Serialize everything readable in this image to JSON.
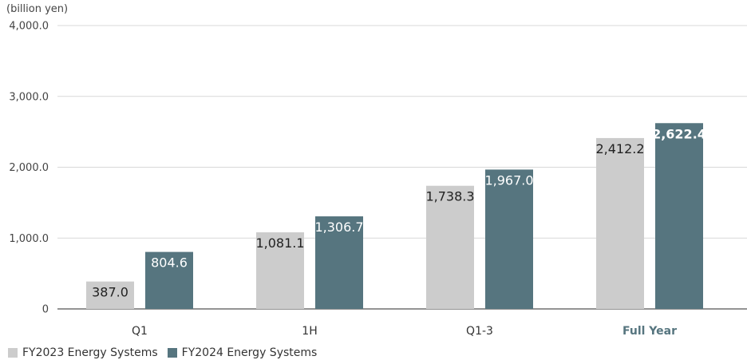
{
  "chart_data": {
    "type": "bar",
    "unit_label": "(billion yen)",
    "categories": [
      "Q1",
      "1H",
      "Q1-3",
      "Full Year"
    ],
    "highlight_category": "Full Year",
    "series": [
      {
        "name": "FY2023 Energy Systems",
        "values": [
          387.0,
          1081.1,
          1738.3,
          2412.2
        ],
        "labels": [
          "387.0",
          "1,081.1",
          "1,738.3",
          "2,412.2"
        ],
        "color": "#cccccc"
      },
      {
        "name": "FY2024 Energy Systems",
        "values": [
          804.6,
          1306.7,
          1967.0,
          2622.4
        ],
        "labels": [
          "804.6",
          "1,306.7",
          "1,967.0",
          "2,622.4"
        ],
        "color": "#56757f"
      }
    ],
    "y_ticks": [
      0,
      1000,
      2000,
      3000,
      4000
    ],
    "y_tick_labels": [
      "0",
      "1,000.0",
      "2,000.0",
      "3,000.0",
      "4,000.0"
    ],
    "ylim": [
      0,
      4000
    ],
    "grid": true,
    "legend_position": "bottom-left",
    "highlight_color": "#56757f"
  }
}
